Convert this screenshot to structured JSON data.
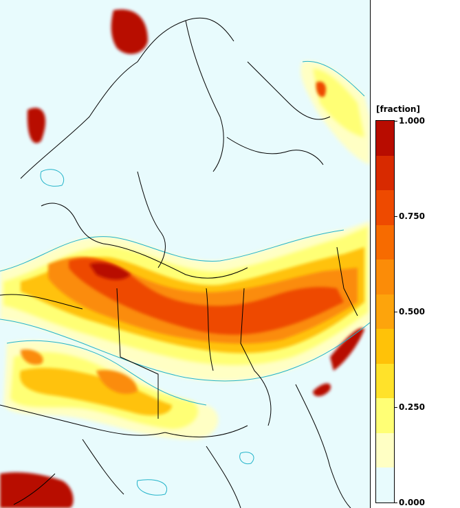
{
  "legend": {
    "title": "[fraction]",
    "ticks": [
      "1.000",
      "0.750",
      "0.500",
      "0.250",
      "0.000"
    ],
    "tick_values": [
      1.0,
      0.75,
      0.5,
      0.25,
      0.0
    ],
    "colors_top_to_bottom": [
      "#b80c00",
      "#d82a00",
      "#ee4a00",
      "#f76b00",
      "#fb8c08",
      "#fda40c",
      "#ffc208",
      "#ffe22a",
      "#ffff75",
      "#ffffc4",
      "#e8fbfd"
    ]
  },
  "map": {
    "background_color": "#e8fbfd",
    "coast_color": "#000000",
    "contour_color": "#22b3c9"
  }
}
